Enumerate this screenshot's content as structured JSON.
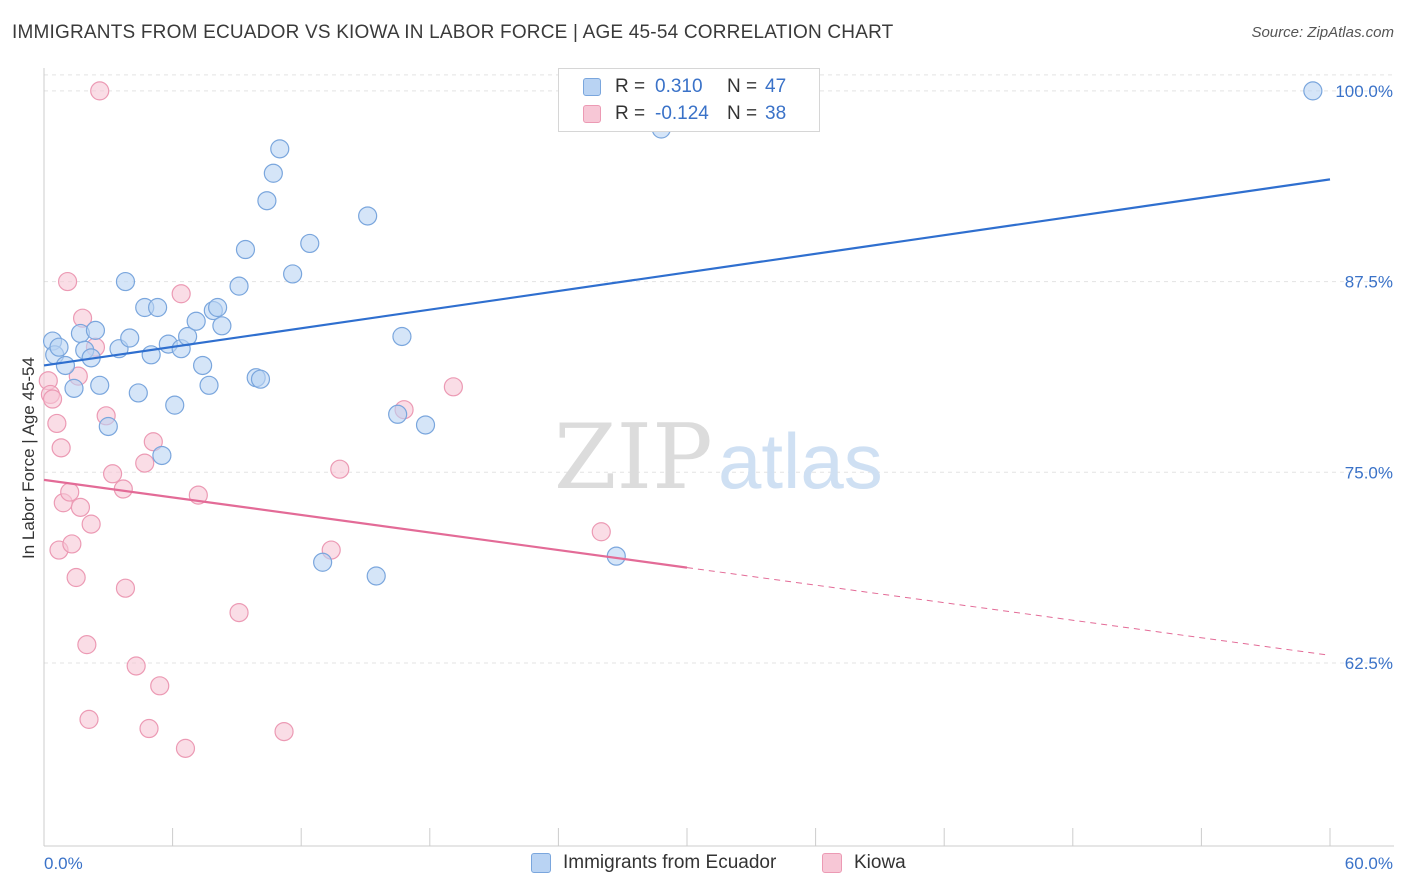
{
  "header": {
    "title": "IMMIGRANTS FROM ECUADOR VS KIOWA IN LABOR FORCE | AGE 45-54 CORRELATION CHART",
    "source": "Source: ZipAtlas.com"
  },
  "watermark": {
    "part1": "ZIP",
    "part2": "atlas"
  },
  "legend": {
    "rows": [
      {
        "r_label": "R = ",
        "r_value": "0.310",
        "n_label": "N = ",
        "n_value": "47"
      },
      {
        "r_label": "R = ",
        "r_value": "-0.124",
        "n_label": "N = ",
        "n_value": "38"
      }
    ]
  },
  "colors": {
    "blue_fill": "#b9d3f3",
    "blue_stroke": "#7aa6dd",
    "blue_line": "#2f6fcf",
    "pink_fill": "#f7c7d6",
    "pink_stroke": "#ec9ab4",
    "pink_line": "#e36b97",
    "tick_label": "#3a72c8",
    "grid": "#e3e3e3",
    "axis": "#cccccc"
  },
  "chart_data": {
    "type": "scatter",
    "title": "IMMIGRANTS FROM ECUADOR VS KIOWA IN LABOR FORCE | AGE 45-54 CORRELATION CHART",
    "xlabel": "",
    "ylabel": "In Labor Force | Age 45-54",
    "xlim": [
      0,
      60
    ],
    "ylim": [
      50.5,
      101.5
    ],
    "x_tick_labels": [
      "0.0%",
      "60.0%"
    ],
    "y_ticks": [
      62.5,
      75.0,
      87.5,
      100.0
    ],
    "y_tick_labels": [
      "62.5%",
      "75.0%",
      "87.5%",
      "100.0%"
    ],
    "legend_position": "bottom-center",
    "series": [
      {
        "name": "Immigrants from Ecuador",
        "color": "blue",
        "r": 0.31,
        "n": 47,
        "trend": {
          "x": [
            0,
            60
          ],
          "y": [
            82.0,
            94.2
          ],
          "dashed_from_x": null
        },
        "points": [
          [
            0.4,
            83.6
          ],
          [
            0.5,
            82.7
          ],
          [
            0.7,
            83.2
          ],
          [
            1.0,
            82.0
          ],
          [
            1.4,
            80.5
          ],
          [
            1.7,
            84.1
          ],
          [
            1.9,
            83.0
          ],
          [
            2.4,
            84.3
          ],
          [
            2.2,
            82.5
          ],
          [
            3.0,
            78.0
          ],
          [
            2.6,
            80.7
          ],
          [
            3.5,
            83.1
          ],
          [
            3.8,
            87.5
          ],
          [
            4.0,
            83.8
          ],
          [
            4.4,
            80.2
          ],
          [
            4.7,
            85.8
          ],
          [
            5.0,
            82.7
          ],
          [
            5.3,
            85.8
          ],
          [
            5.5,
            76.1
          ],
          [
            5.8,
            83.4
          ],
          [
            6.1,
            79.4
          ],
          [
            6.4,
            83.1
          ],
          [
            6.7,
            83.9
          ],
          [
            7.1,
            84.9
          ],
          [
            7.4,
            82.0
          ],
          [
            7.7,
            80.7
          ],
          [
            7.9,
            85.6
          ],
          [
            8.1,
            85.8
          ],
          [
            8.3,
            84.6
          ],
          [
            9.1,
            87.2
          ],
          [
            9.4,
            89.6
          ],
          [
            9.9,
            81.2
          ],
          [
            10.1,
            81.1
          ],
          [
            10.4,
            92.8
          ],
          [
            10.7,
            94.6
          ],
          [
            11.0,
            96.2
          ],
          [
            11.6,
            88.0
          ],
          [
            12.4,
            90.0
          ],
          [
            13.0,
            69.1
          ],
          [
            15.1,
            91.8
          ],
          [
            15.5,
            68.2
          ],
          [
            16.5,
            78.8
          ],
          [
            16.7,
            83.9
          ],
          [
            17.8,
            78.1
          ],
          [
            26.7,
            69.5
          ],
          [
            28.8,
            97.5
          ],
          [
            59.2,
            100.0
          ]
        ]
      },
      {
        "name": "Kiowa",
        "color": "pink",
        "r": -0.124,
        "n": 38,
        "trend": {
          "x": [
            0,
            60
          ],
          "y": [
            74.5,
            63.0
          ],
          "dashed_from_x": 30.0
        },
        "points": [
          [
            0.2,
            81.0
          ],
          [
            0.3,
            80.1
          ],
          [
            0.4,
            79.8
          ],
          [
            0.6,
            78.2
          ],
          [
            0.7,
            69.9
          ],
          [
            0.8,
            76.6
          ],
          [
            0.9,
            73.0
          ],
          [
            1.1,
            87.5
          ],
          [
            1.2,
            73.7
          ],
          [
            1.3,
            70.3
          ],
          [
            1.5,
            68.1
          ],
          [
            1.6,
            81.3
          ],
          [
            1.7,
            72.7
          ],
          [
            1.8,
            85.1
          ],
          [
            2.1,
            58.8
          ],
          [
            2.0,
            63.7
          ],
          [
            2.2,
            71.6
          ],
          [
            2.4,
            83.2
          ],
          [
            2.6,
            100.0
          ],
          [
            2.9,
            78.7
          ],
          [
            3.2,
            74.9
          ],
          [
            3.7,
            73.9
          ],
          [
            3.8,
            67.4
          ],
          [
            4.3,
            62.3
          ],
          [
            4.7,
            75.6
          ],
          [
            4.9,
            58.2
          ],
          [
            5.1,
            77.0
          ],
          [
            5.4,
            61.0
          ],
          [
            6.4,
            86.7
          ],
          [
            6.6,
            56.9
          ],
          [
            7.2,
            73.5
          ],
          [
            9.1,
            65.8
          ],
          [
            11.2,
            58.0
          ],
          [
            13.4,
            69.9
          ],
          [
            13.8,
            75.2
          ],
          [
            16.8,
            79.1
          ],
          [
            19.1,
            80.6
          ],
          [
            26.0,
            71.1
          ]
        ]
      }
    ]
  }
}
